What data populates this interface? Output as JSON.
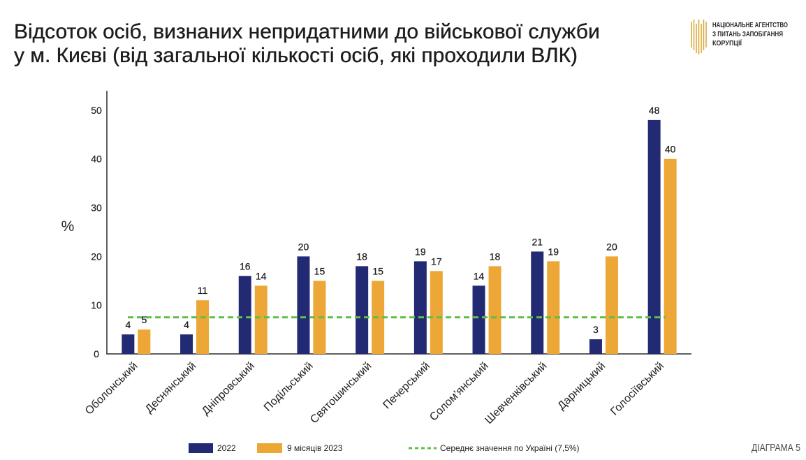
{
  "chart_data": {
    "type": "bar",
    "title": [
      "Відсоток осіб, визнаних непридатними до військової служби",
      "у м. Києві (від загальної кількості осіб, які проходили ВЛК)"
    ],
    "xlabel": "",
    "ylabel": "%",
    "ylim": [
      0,
      54
    ],
    "yticks": [
      0,
      10,
      20,
      30,
      40,
      50
    ],
    "grid": false,
    "legend": "bottom",
    "categories": [
      "Оболонський",
      "Деснянський",
      "Дніпровський",
      "Подільський",
      "Святошинський",
      "Печерський",
      "Солом'янський",
      "Шевченківський",
      "Дарницький",
      "Голосіївський"
    ],
    "series": [
      {
        "name": "2022",
        "color": "#232a74",
        "values": [
          4,
          4,
          16,
          20,
          18,
          19,
          14,
          21,
          3,
          48
        ]
      },
      {
        "name": "9 місяців 2023",
        "color": "#eca736",
        "values": [
          5,
          11,
          14,
          15,
          15,
          17,
          18,
          19,
          20,
          40
        ]
      }
    ],
    "reference_line": {
      "label": "Середнє значення по Україні (7,5%)",
      "value": 7.5,
      "color": "#5fbf48"
    }
  },
  "logo": {
    "icon": "nazk-logo-icon",
    "color": "#d8a531",
    "lines": [
      "НАЦІОНАЛЬНЕ АГЕНТСТВО",
      "З ПИТАНЬ ЗАПОБІГАННЯ",
      "КОРУПЦІЇ"
    ]
  },
  "diagram_label": "ДІАГРАМА 5"
}
